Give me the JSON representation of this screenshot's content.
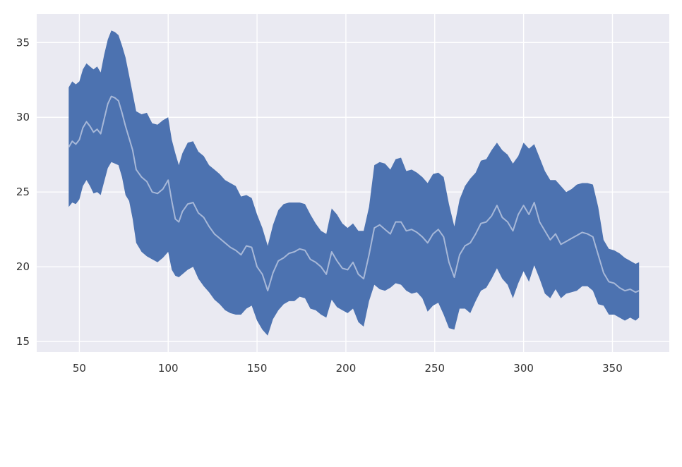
{
  "chart_data": {
    "type": "area",
    "title": "",
    "xlabel": "",
    "ylabel": "",
    "xlim": [
      26,
      382
    ],
    "ylim": [
      14.3,
      36.9
    ],
    "grid": true,
    "x_ticks": [
      50,
      100,
      150,
      200,
      250,
      300,
      350
    ],
    "y_ticks": [
      15,
      20,
      25,
      30,
      35
    ],
    "x_tick_labels": [
      "50",
      "100",
      "150",
      "200",
      "250",
      "300",
      "350"
    ],
    "y_tick_labels": [
      "15",
      "20",
      "25",
      "30",
      "35"
    ],
    "colors": {
      "plot_background": "#eaeaf2",
      "grid": "#ffffff",
      "band": "#4c72b0",
      "center_line": "#a7b8d8"
    },
    "series": [
      {
        "x": [
          44,
          46,
          48,
          50,
          52,
          54,
          56,
          58,
          60,
          62,
          64,
          66,
          68,
          70,
          72,
          74,
          76,
          78,
          80,
          82,
          85,
          88,
          91,
          94,
          97,
          100,
          102,
          104,
          106,
          108,
          111,
          114,
          117,
          120,
          123,
          126,
          129,
          132,
          135,
          138,
          141,
          144,
          147,
          150,
          153,
          156,
          159,
          162,
          165,
          168,
          171,
          174,
          177,
          180,
          183,
          186,
          189,
          192,
          195,
          198,
          201,
          204,
          207,
          210,
          213,
          216,
          219,
          222,
          225,
          228,
          231,
          234,
          237,
          240,
          243,
          246,
          249,
          252,
          255,
          258,
          261,
          264,
          267,
          270,
          273,
          276,
          279,
          282,
          285,
          288,
          291,
          294,
          297,
          300,
          303,
          306,
          309,
          312,
          315,
          318,
          321,
          324,
          327,
          330,
          333,
          336,
          339,
          342,
          345,
          348,
          351,
          354,
          357,
          360,
          363,
          365
        ],
        "upper": [
          32.0,
          32.4,
          32.2,
          32.4,
          33.2,
          33.6,
          33.4,
          33.2,
          33.4,
          33.0,
          34.2,
          35.2,
          35.8,
          35.7,
          35.5,
          34.8,
          34.0,
          32.8,
          31.6,
          30.4,
          30.2,
          30.3,
          29.6,
          29.5,
          29.8,
          30.0,
          28.5,
          27.6,
          26.8,
          27.6,
          28.3,
          28.4,
          27.7,
          27.4,
          26.8,
          26.5,
          26.2,
          25.8,
          25.6,
          25.4,
          24.7,
          24.8,
          24.6,
          23.5,
          22.6,
          21.4,
          22.8,
          23.8,
          24.2,
          24.3,
          24.3,
          24.3,
          24.2,
          23.5,
          22.9,
          22.4,
          22.2,
          23.9,
          23.5,
          22.9,
          22.6,
          22.9,
          22.4,
          22.4,
          24.0,
          26.8,
          27.0,
          26.9,
          26.5,
          27.2,
          27.3,
          26.4,
          26.5,
          26.3,
          26.0,
          25.6,
          26.2,
          26.3,
          26.0,
          24.2,
          22.7,
          24.5,
          25.4,
          25.9,
          26.3,
          27.1,
          27.2,
          27.8,
          28.3,
          27.8,
          27.5,
          26.9,
          27.4,
          28.3,
          27.9,
          28.2,
          27.3,
          26.4,
          25.8,
          25.8,
          25.4,
          25.0,
          25.2,
          25.5,
          25.6,
          25.6,
          25.5,
          24.0,
          21.8,
          21.2,
          21.1,
          20.9,
          20.6,
          20.4,
          20.2,
          20.3
        ],
        "mid": [
          28.0,
          28.4,
          28.2,
          28.5,
          29.3,
          29.7,
          29.4,
          29.0,
          29.2,
          28.9,
          29.9,
          30.9,
          31.4,
          31.3,
          31.1,
          30.3,
          29.4,
          28.6,
          27.8,
          26.5,
          26.0,
          25.7,
          25.0,
          24.9,
          25.2,
          25.8,
          24.4,
          23.2,
          23.0,
          23.7,
          24.2,
          24.3,
          23.6,
          23.3,
          22.7,
          22.2,
          21.9,
          21.6,
          21.3,
          21.1,
          20.8,
          21.4,
          21.3,
          20.0,
          19.5,
          18.4,
          19.6,
          20.4,
          20.6,
          20.9,
          21.0,
          21.2,
          21.1,
          20.5,
          20.3,
          20.0,
          19.5,
          21.0,
          20.4,
          19.9,
          19.8,
          20.3,
          19.5,
          19.2,
          20.8,
          22.6,
          22.8,
          22.5,
          22.2,
          23.0,
          23.0,
          22.4,
          22.5,
          22.3,
          22.0,
          21.6,
          22.2,
          22.5,
          22.0,
          20.3,
          19.3,
          20.8,
          21.4,
          21.6,
          22.2,
          22.9,
          23.0,
          23.4,
          24.1,
          23.3,
          23.0,
          22.4,
          23.5,
          24.1,
          23.5,
          24.3,
          23.0,
          22.4,
          21.8,
          22.2,
          21.5,
          21.7,
          21.9,
          22.1,
          22.3,
          22.2,
          22.0,
          20.8,
          19.6,
          19.0,
          18.9,
          18.6,
          18.4,
          18.5,
          18.3,
          18.4
        ],
        "lower": [
          24.0,
          24.3,
          24.2,
          24.5,
          25.4,
          25.8,
          25.4,
          24.9,
          25.0,
          24.8,
          25.7,
          26.6,
          27.0,
          26.9,
          26.8,
          26.0,
          24.8,
          24.4,
          23.2,
          21.6,
          21.0,
          20.7,
          20.5,
          20.3,
          20.6,
          21.0,
          19.8,
          19.4,
          19.3,
          19.5,
          19.8,
          20.0,
          19.2,
          18.7,
          18.3,
          17.8,
          17.5,
          17.1,
          16.9,
          16.8,
          16.8,
          17.2,
          17.4,
          16.4,
          15.8,
          15.4,
          16.5,
          17.1,
          17.5,
          17.7,
          17.7,
          18.0,
          17.9,
          17.2,
          17.1,
          16.8,
          16.6,
          17.8,
          17.3,
          17.1,
          16.9,
          17.2,
          16.3,
          16.0,
          17.7,
          18.8,
          18.5,
          18.4,
          18.6,
          18.9,
          18.8,
          18.4,
          18.2,
          18.3,
          17.9,
          17.0,
          17.4,
          17.6,
          16.8,
          15.9,
          15.8,
          17.2,
          17.2,
          16.9,
          17.7,
          18.4,
          18.6,
          19.2,
          19.9,
          19.2,
          18.8,
          17.9,
          18.9,
          19.7,
          19.0,
          20.1,
          19.2,
          18.2,
          17.9,
          18.5,
          17.9,
          18.2,
          18.3,
          18.4,
          18.7,
          18.7,
          18.4,
          17.5,
          17.4,
          16.8,
          16.8,
          16.6,
          16.4,
          16.6,
          16.4,
          16.6
        ]
      }
    ]
  }
}
